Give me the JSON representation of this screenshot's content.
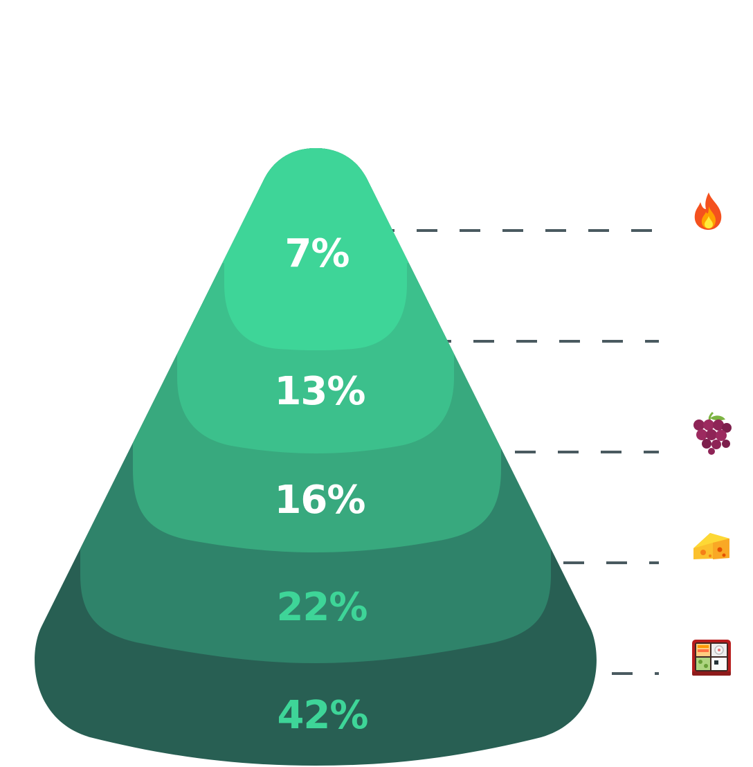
{
  "pyramid": {
    "levels": [
      {
        "label": "7%",
        "icon": "fire-icon",
        "emoji": "🔥",
        "color": "#3ed598",
        "text_color": "#ffffff"
      },
      {
        "label": "13%",
        "icon": "",
        "emoji": "",
        "color": "#3cc08c",
        "text_color": "#ffffff"
      },
      {
        "label": "16%",
        "icon": "grapes-icon",
        "emoji": "🍇",
        "color": "#38a97e",
        "text_color": "#ffffff"
      },
      {
        "label": "22%",
        "icon": "cheese-icon",
        "emoji": "🧀",
        "color": "#2f836a",
        "text_color": "#3ed598"
      },
      {
        "label": "42%",
        "icon": "bento-box-icon",
        "emoji": "🍱",
        "color": "#285f53",
        "text_color": "#3ed598"
      }
    ]
  }
}
